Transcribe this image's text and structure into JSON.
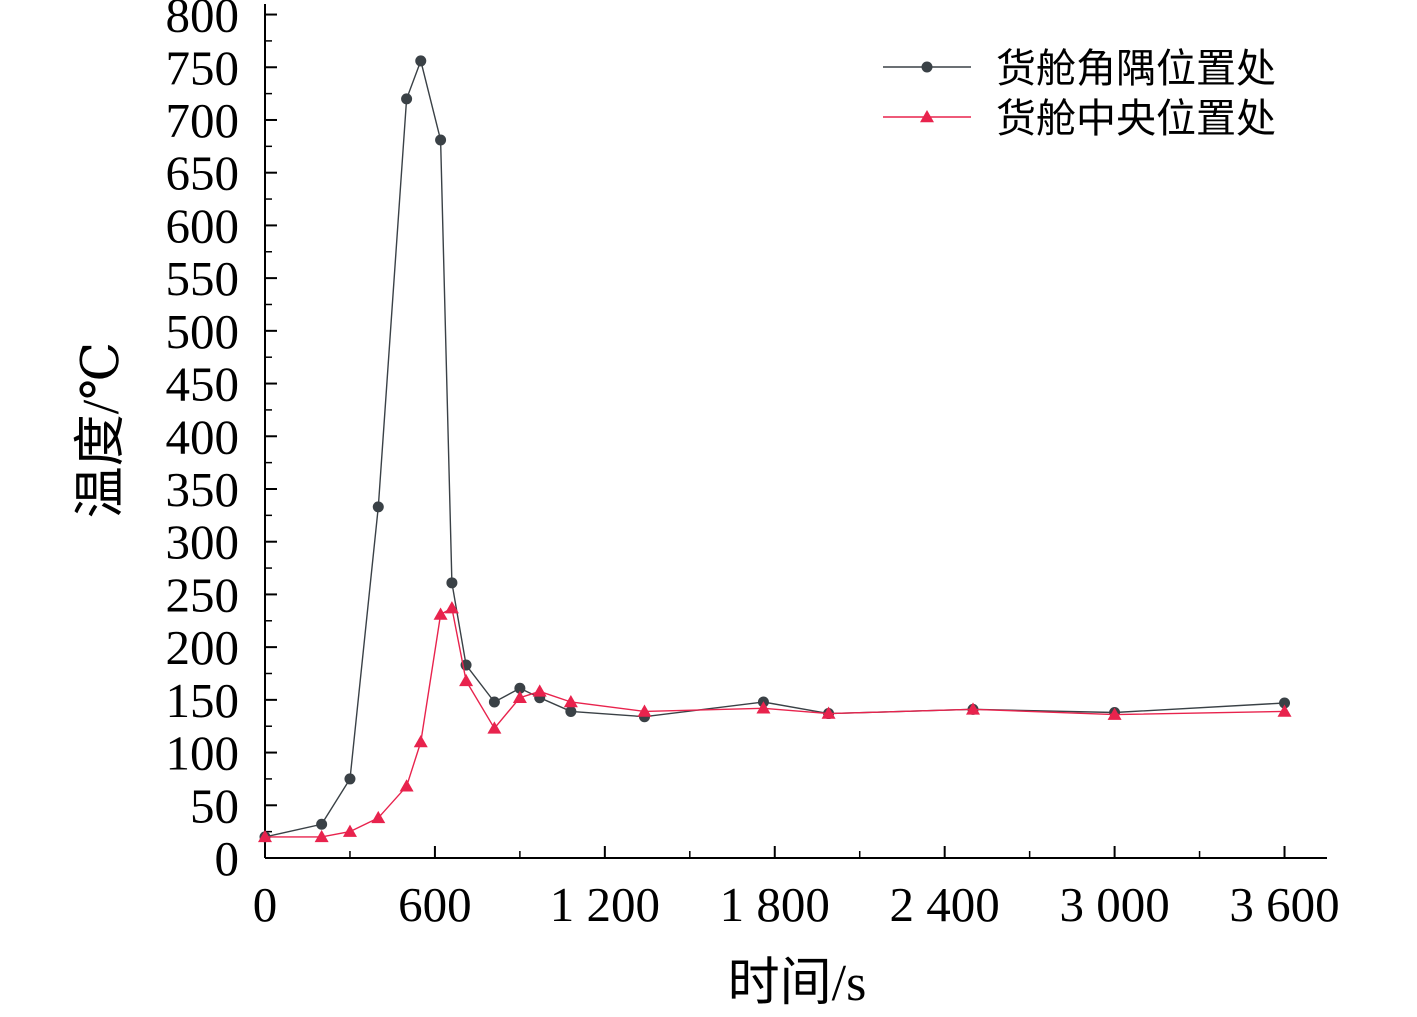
{
  "chart_data": {
    "type": "line",
    "xlabel": "时间/s",
    "ylabel": "温度/℃",
    "xlim": [
      0,
      3750
    ],
    "ylim": [
      0,
      810
    ],
    "x_ticks": [
      0,
      600,
      1200,
      1800,
      2400,
      3000,
      3600
    ],
    "x_tick_labels": [
      "0",
      "600",
      "1 200",
      "1 800",
      "2 400",
      "3 000",
      "3 600"
    ],
    "y_ticks": [
      0,
      50,
      100,
      150,
      200,
      250,
      300,
      350,
      400,
      450,
      500,
      550,
      600,
      650,
      700,
      750,
      800
    ],
    "y_tick_labels": [
      "0",
      "50",
      "100",
      "150",
      "200",
      "250",
      "300",
      "350",
      "400",
      "450",
      "500",
      "550",
      "600",
      "650",
      "700",
      "750",
      "800"
    ],
    "legend_position": "top-right",
    "series": [
      {
        "name": "货舱角隅位置处",
        "color": "#3a4146",
        "marker": "circle",
        "x": [
          0,
          200,
          300,
          400,
          500,
          550,
          620,
          660,
          710,
          810,
          900,
          970,
          1080,
          1340,
          1760,
          1990,
          2500,
          3000,
          3600
        ],
        "y": [
          20,
          32,
          75,
          333,
          720,
          756,
          681,
          261,
          183,
          148,
          161,
          152,
          139,
          134,
          148,
          137,
          141,
          138,
          147
        ]
      },
      {
        "name": "货舱中央位置处",
        "color": "#e8234d",
        "marker": "triangle",
        "x": [
          0,
          200,
          300,
          400,
          500,
          550,
          620,
          660,
          710,
          810,
          900,
          970,
          1080,
          1340,
          1760,
          1990,
          2500,
          3000,
          3600
        ],
        "y": [
          20,
          20,
          25,
          38,
          68,
          110,
          231,
          237,
          168,
          123,
          152,
          158,
          148,
          139,
          142,
          137,
          141,
          136,
          139
        ]
      }
    ]
  }
}
